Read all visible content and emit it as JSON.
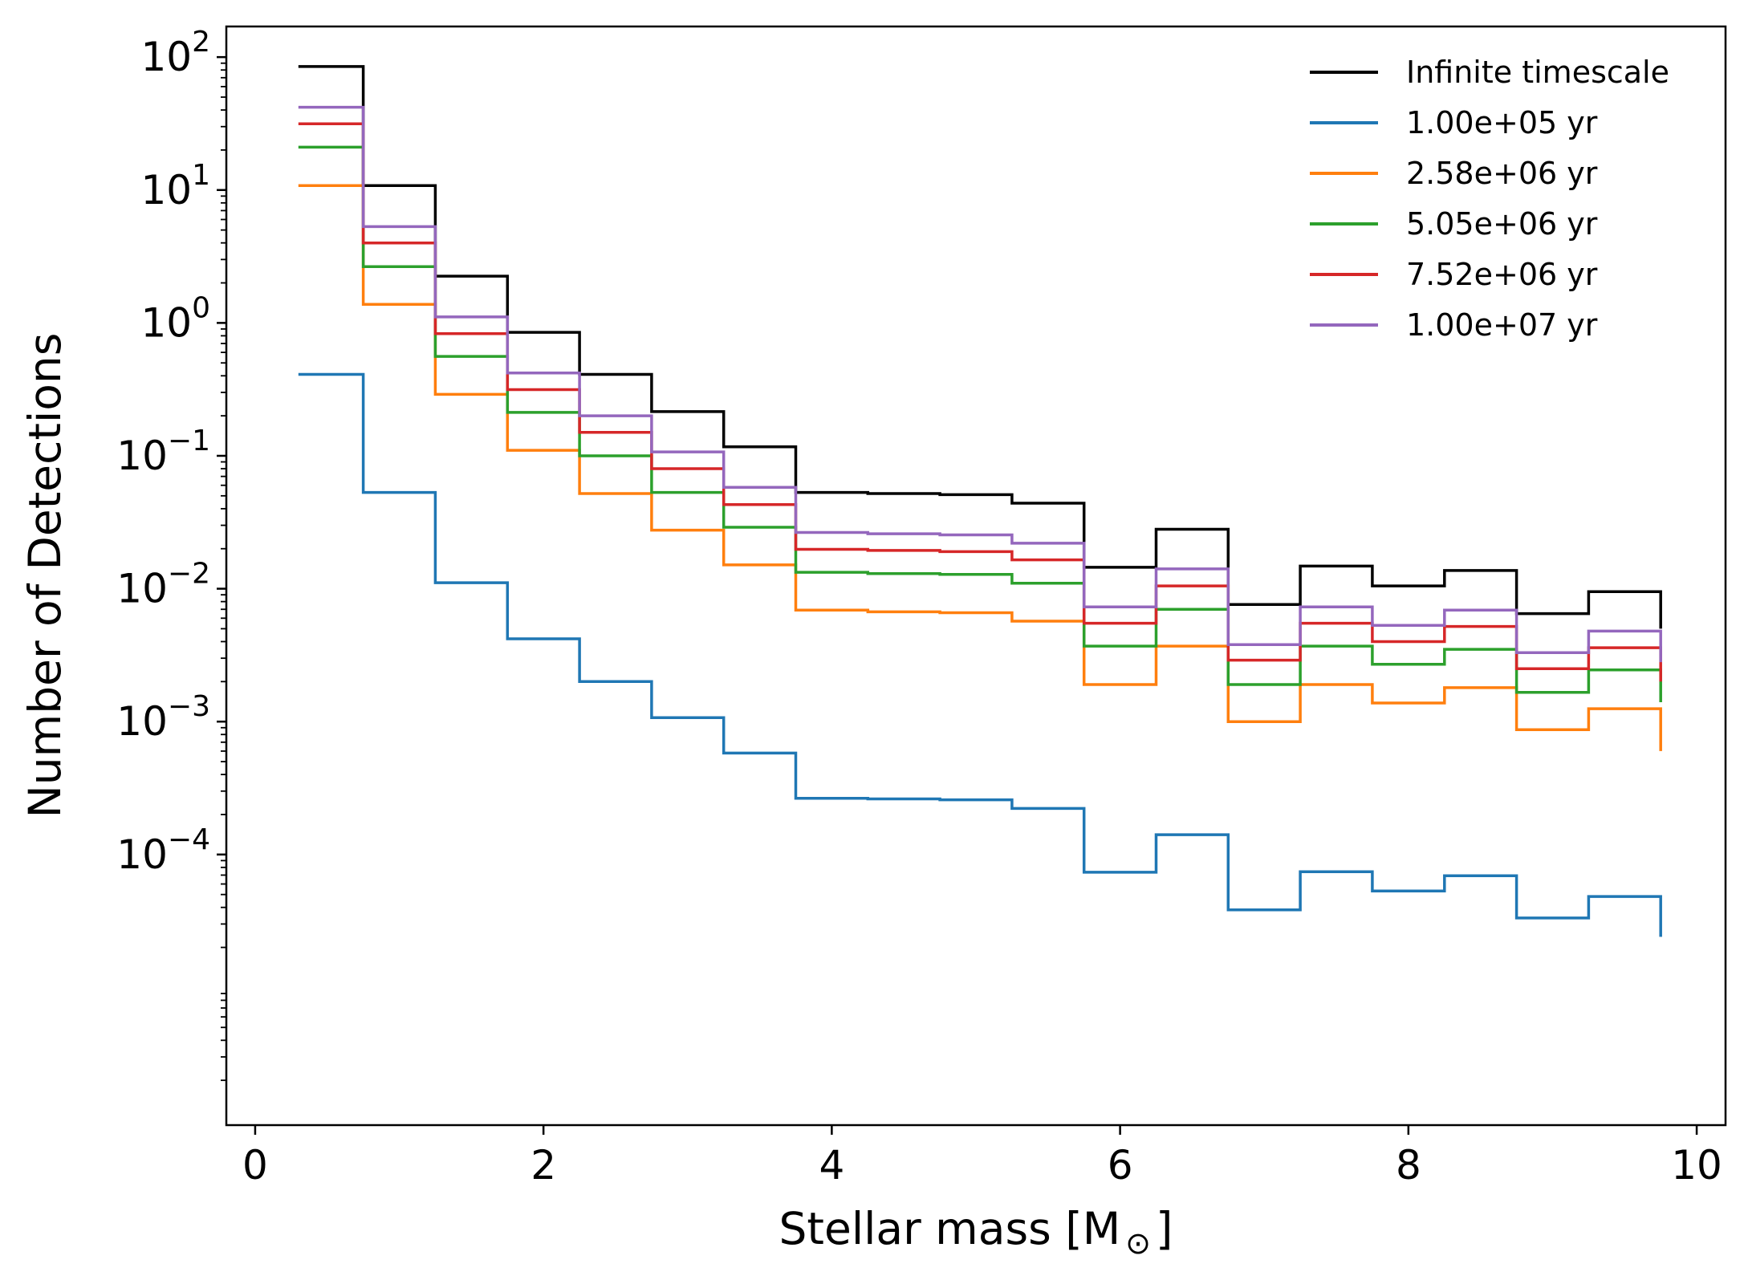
{
  "chart_data": {
    "type": "line",
    "style": "step histogram",
    "xlabel": "Stellar mass [M",
    "xlabel_unit_symbol": "⊙",
    "xlabel_close": "]",
    "ylabel": "Number of Detections",
    "xlim": [
      -0.2,
      10.2
    ],
    "ylim": [
      9.2e-07,
      170
    ],
    "yscale": "log",
    "grid": false,
    "legend_position": "top-right",
    "x_ticks": [
      {
        "value": 0,
        "label": "0"
      },
      {
        "value": 2,
        "label": "2"
      },
      {
        "value": 4,
        "label": "4"
      },
      {
        "value": 6,
        "label": "6"
      },
      {
        "value": 8,
        "label": "8"
      },
      {
        "value": 10,
        "label": "10"
      }
    ],
    "y_ticks": [
      {
        "value": 100,
        "base": "10",
        "exp": "2"
      },
      {
        "value": 10,
        "base": "10",
        "exp": "1"
      },
      {
        "value": 1,
        "base": "10",
        "exp": "0"
      },
      {
        "value": 0.1,
        "base": "10",
        "exp": "−1"
      },
      {
        "value": 0.01,
        "base": "10",
        "exp": "−2"
      },
      {
        "value": 0.001,
        "base": "10",
        "exp": "−3"
      },
      {
        "value": 0.0001,
        "base": "10",
        "exp": "−4"
      }
    ],
    "bin_edges": [
      0.3,
      0.75,
      1.25,
      1.75,
      2.25,
      2.75,
      3.25,
      3.75,
      4.25,
      4.75,
      5.25,
      5.75,
      6.25,
      6.75,
      7.25,
      7.75,
      8.25,
      8.75,
      9.25,
      9.75
    ],
    "series": [
      {
        "name": "Infinite timescale",
        "color": "#000000",
        "values": [
          85,
          10.8,
          2.25,
          0.85,
          0.41,
          0.215,
          0.117,
          0.053,
          0.052,
          0.051,
          0.044,
          0.0145,
          0.028,
          0.0076,
          0.0148,
          0.0105,
          0.0137,
          0.0065,
          0.0095
        ],
        "end_value": 0.005
      },
      {
        "name": "1.00e+05 yr",
        "color": "#1f77b4",
        "values": [
          0.41,
          0.053,
          0.0111,
          0.0042,
          0.002,
          0.00107,
          0.00058,
          0.000265,
          0.000262,
          0.000258,
          0.000222,
          7.35e-05,
          0.000141,
          3.83e-05,
          7.43e-05,
          5.32e-05,
          6.93e-05,
          3.33e-05,
          4.83e-05
        ],
        "end_value": 2.4e-05
      },
      {
        "name": "2.58e+06 yr",
        "color": "#ff7f0e",
        "values": [
          10.8,
          1.38,
          0.29,
          0.11,
          0.052,
          0.0276,
          0.0151,
          0.0069,
          0.0067,
          0.0066,
          0.0057,
          0.0019,
          0.0037,
          0.001,
          0.0019,
          0.00138,
          0.0018,
          0.00087,
          0.00125
        ],
        "end_value": 0.0006
      },
      {
        "name": "5.05e+06 yr",
        "color": "#2ca02c",
        "values": [
          21,
          2.65,
          0.56,
          0.212,
          0.1,
          0.053,
          0.029,
          0.0133,
          0.013,
          0.0128,
          0.011,
          0.0037,
          0.007,
          0.0019,
          0.0037,
          0.0027,
          0.0035,
          0.00166,
          0.00245
        ],
        "end_value": 0.0014
      },
      {
        "name": "7.52e+06 yr",
        "color": "#d62728",
        "values": [
          31.5,
          4.0,
          0.83,
          0.315,
          0.15,
          0.08,
          0.043,
          0.0198,
          0.0194,
          0.019,
          0.0165,
          0.0055,
          0.0105,
          0.0029,
          0.0055,
          0.004,
          0.0052,
          0.0025,
          0.0036
        ],
        "end_value": 0.002
      },
      {
        "name": "1.00e+07 yr",
        "color": "#9467bd",
        "values": [
          42,
          5.3,
          1.11,
          0.42,
          0.2,
          0.107,
          0.058,
          0.0265,
          0.0259,
          0.0254,
          0.022,
          0.0073,
          0.0141,
          0.0038,
          0.0073,
          0.0053,
          0.0069,
          0.0033,
          0.0048
        ],
        "end_value": 0.0028
      }
    ]
  }
}
